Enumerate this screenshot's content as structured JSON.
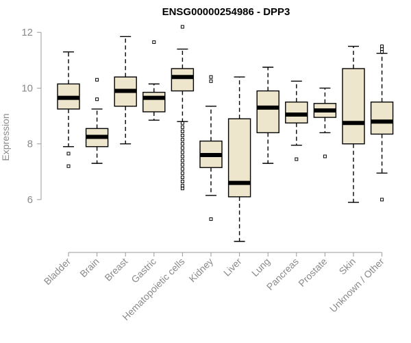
{
  "chart_data": {
    "type": "boxplot",
    "title": "ENSG00000254986 - DPP3",
    "xlabel": "",
    "ylabel": "Expression",
    "ylim": [
      4.3,
      12.35
    ],
    "yticks": [
      6,
      8,
      10,
      12
    ],
    "grid": false,
    "box_color": "#ede6cd",
    "categories": [
      "Bladder",
      "Brain",
      "Breast",
      "Gastric",
      "Hematopoietic cells",
      "Kidney",
      "Liver",
      "Lung",
      "Pancreas",
      "Prostate",
      "Skin",
      "Unknown / Other"
    ],
    "series": [
      {
        "name": "Bladder",
        "whisker_low": 7.9,
        "q1": 9.25,
        "median": 9.65,
        "q3": 10.15,
        "whisker_high": 11.3,
        "outliers": [
          7.65,
          7.2
        ]
      },
      {
        "name": "Brain",
        "whisker_low": 7.3,
        "q1": 7.9,
        "median": 8.25,
        "q3": 8.55,
        "whisker_high": 9.25,
        "outliers": [
          10.3,
          9.6
        ]
      },
      {
        "name": "Breast",
        "whisker_low": 8.0,
        "q1": 9.35,
        "median": 9.9,
        "q3": 10.4,
        "whisker_high": 11.85,
        "outliers": []
      },
      {
        "name": "Gastric",
        "whisker_low": 8.85,
        "q1": 9.15,
        "median": 9.65,
        "q3": 9.85,
        "whisker_high": 10.15,
        "outliers": [
          11.65
        ]
      },
      {
        "name": "Hematopoietic cells",
        "whisker_low": 8.8,
        "q1": 9.9,
        "median": 10.4,
        "q3": 10.7,
        "whisker_high": 11.4,
        "outliers": [
          12.2,
          8.75,
          8.6,
          8.45,
          8.3,
          8.15,
          8.0,
          7.85,
          7.7,
          7.55,
          7.4,
          7.25,
          7.1,
          6.95,
          6.8,
          6.65,
          6.5,
          6.4
        ]
      },
      {
        "name": "Kidney",
        "whisker_low": 6.15,
        "q1": 7.15,
        "median": 7.6,
        "q3": 8.1,
        "whisker_high": 9.35,
        "outliers": [
          10.4,
          10.25,
          5.3
        ]
      },
      {
        "name": "Liver",
        "whisker_low": 4.5,
        "q1": 6.1,
        "median": 6.6,
        "q3": 8.9,
        "whisker_high": 10.4,
        "outliers": []
      },
      {
        "name": "Lung",
        "whisker_low": 7.3,
        "q1": 8.4,
        "median": 9.3,
        "q3": 9.9,
        "whisker_high": 10.75,
        "outliers": []
      },
      {
        "name": "Pancreas",
        "whisker_low": 7.95,
        "q1": 8.75,
        "median": 9.05,
        "q3": 9.5,
        "whisker_high": 10.25,
        "outliers": [
          7.45
        ]
      },
      {
        "name": "Prostate",
        "whisker_low": 8.4,
        "q1": 8.95,
        "median": 9.2,
        "q3": 9.45,
        "whisker_high": 10.0,
        "outliers": [
          7.55
        ]
      },
      {
        "name": "Skin",
        "whisker_low": 5.9,
        "q1": 8.0,
        "median": 8.75,
        "q3": 10.7,
        "whisker_high": 11.5,
        "outliers": []
      },
      {
        "name": "Unknown / Other",
        "whisker_low": 6.95,
        "q1": 8.35,
        "median": 8.8,
        "q3": 9.5,
        "whisker_high": 11.25,
        "outliers": [
          11.5,
          11.4,
          11.3,
          6.0
        ]
      }
    ]
  }
}
